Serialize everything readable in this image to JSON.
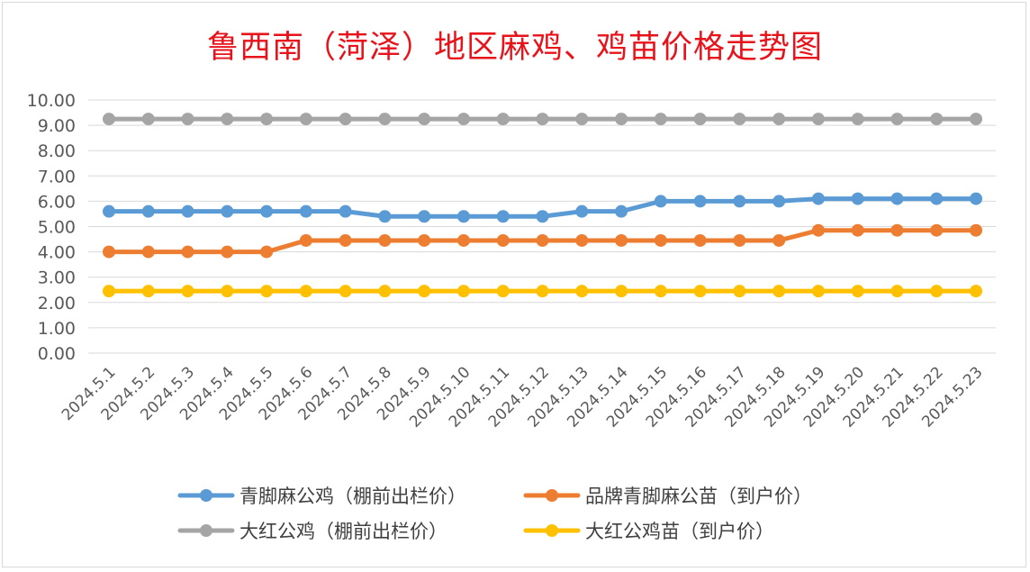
{
  "chart_data": {
    "type": "line",
    "title": "鲁西南（菏泽）地区麻鸡、鸡苗价格走势图",
    "xlabel": "",
    "ylabel": "",
    "ylim": [
      0,
      10
    ],
    "yticks": [
      "0.00",
      "1.00",
      "2.00",
      "3.00",
      "4.00",
      "5.00",
      "6.00",
      "7.00",
      "8.00",
      "9.00",
      "10.00"
    ],
    "grid": true,
    "legend_position": "bottom",
    "categories": [
      "2024.5.1",
      "2024.5.2",
      "2024.5.3",
      "2024.5.4",
      "2024.5.5",
      "2024.5.6",
      "2024.5.7",
      "2024.5.8",
      "2024.5.9",
      "2024.5.10",
      "2024.5.11",
      "2024.5.12",
      "2024.5.13",
      "2024.5.14",
      "2024.5.15",
      "2024.5.16",
      "2024.5.17",
      "2024.5.18",
      "2024.5.19",
      "2024.5.20",
      "2024.5.21",
      "2024.5.22",
      "2024.5.23"
    ],
    "series": [
      {
        "name": "青脚麻公鸡（棚前出栏价）",
        "color": "#5b9bd5",
        "values": [
          5.6,
          5.6,
          5.6,
          5.6,
          5.6,
          5.6,
          5.6,
          5.4,
          5.4,
          5.4,
          5.4,
          5.4,
          5.6,
          5.6,
          6.0,
          6.0,
          6.0,
          6.0,
          6.1,
          6.1,
          6.1,
          6.1,
          6.1
        ]
      },
      {
        "name": "品牌青脚麻公苗（到户价）",
        "color": "#ed7d31",
        "values": [
          4.0,
          4.0,
          4.0,
          4.0,
          4.0,
          4.45,
          4.45,
          4.45,
          4.45,
          4.45,
          4.45,
          4.45,
          4.45,
          4.45,
          4.45,
          4.45,
          4.45,
          4.45,
          4.85,
          4.85,
          4.85,
          4.85,
          4.85
        ]
      },
      {
        "name": "大红公鸡（棚前出栏价）",
        "color": "#a5a5a5",
        "values": [
          9.25,
          9.25,
          9.25,
          9.25,
          9.25,
          9.25,
          9.25,
          9.25,
          9.25,
          9.25,
          9.25,
          9.25,
          9.25,
          9.25,
          9.25,
          9.25,
          9.25,
          9.25,
          9.25,
          9.25,
          9.25,
          9.25,
          9.25
        ]
      },
      {
        "name": "大红公鸡苗（到户价）",
        "color": "#ffc000",
        "values": [
          2.45,
          2.45,
          2.45,
          2.45,
          2.45,
          2.45,
          2.45,
          2.45,
          2.45,
          2.45,
          2.45,
          2.45,
          2.45,
          2.45,
          2.45,
          2.45,
          2.45,
          2.45,
          2.45,
          2.45,
          2.45,
          2.45,
          2.45
        ]
      }
    ]
  }
}
